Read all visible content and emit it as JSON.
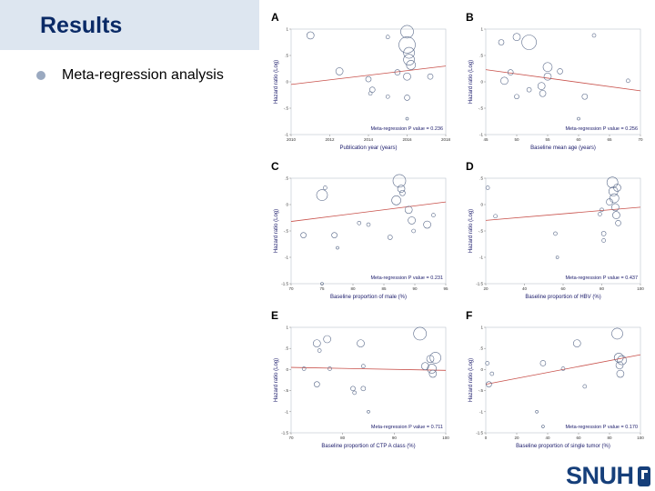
{
  "slide": {
    "title": "Results",
    "bullet": "Meta-regression analysis",
    "logo_text": "SNUH"
  },
  "colors": {
    "title": "#0a2a66",
    "title_band": "#dde6f0",
    "bubble": "#5a6a8a",
    "fit_line": "#c8504a",
    "logo": "#163f7a"
  },
  "panels": [
    {
      "letter": "A"
    },
    {
      "letter": "B"
    },
    {
      "letter": "C"
    },
    {
      "letter": "D"
    },
    {
      "letter": "E"
    },
    {
      "letter": "F"
    }
  ],
  "chart_data": [
    {
      "type": "scatter",
      "panel": "A",
      "xlabel": "Publication year (years)",
      "ylabel": "Hazard ratio (Log)",
      "xticks": [
        "2010",
        "2012",
        "2014",
        "2016",
        "2018"
      ],
      "yticks": [
        "1",
        ".5",
        "0",
        "-.5",
        "-1"
      ],
      "xlim": [
        2010,
        2018
      ],
      "ylim": [
        -1,
        1
      ],
      "annotation": "Meta-regression P value = 0.236",
      "fit": {
        "x": [
          2010,
          2018
        ],
        "y": [
          -0.05,
          0.3
        ]
      },
      "points": [
        {
          "x": 2011,
          "y": 0.88,
          "r": 4
        },
        {
          "x": 2012.5,
          "y": 0.2,
          "r": 4
        },
        {
          "x": 2014,
          "y": 0.05,
          "r": 3
        },
        {
          "x": 2014.2,
          "y": -0.15,
          "r": 3
        },
        {
          "x": 2014.1,
          "y": -0.22,
          "r": 2
        },
        {
          "x": 2015,
          "y": 0.85,
          "r": 2
        },
        {
          "x": 2015,
          "y": -0.28,
          "r": 2
        },
        {
          "x": 2015.5,
          "y": 0.18,
          "r": 3
        },
        {
          "x": 2016,
          "y": 0.95,
          "r": 7
        },
        {
          "x": 2016,
          "y": 0.7,
          "r": 9
        },
        {
          "x": 2016.1,
          "y": 0.55,
          "r": 6
        },
        {
          "x": 2016.1,
          "y": 0.42,
          "r": 6
        },
        {
          "x": 2016.2,
          "y": 0.32,
          "r": 5
        },
        {
          "x": 2016,
          "y": 0.1,
          "r": 4
        },
        {
          "x": 2016,
          "y": -0.3,
          "r": 3
        },
        {
          "x": 2016,
          "y": -0.7,
          "r": 1.5
        },
        {
          "x": 2017.2,
          "y": 0.1,
          "r": 3
        }
      ]
    },
    {
      "type": "scatter",
      "panel": "B",
      "xlabel": "Baseline mean age (years)",
      "ylabel": "Hazard ratio (Log)",
      "xticks": [
        "45",
        "50",
        "55",
        "60",
        "65",
        "70"
      ],
      "yticks": [
        "1",
        ".5",
        "0",
        "-.5",
        "-1"
      ],
      "xlim": [
        45,
        70
      ],
      "ylim": [
        -1,
        1
      ],
      "annotation": "Meta-regression P value = 0.256",
      "fit": {
        "x": [
          45,
          70
        ],
        "y": [
          0.23,
          -0.17
        ]
      },
      "points": [
        {
          "x": 47.5,
          "y": 0.75,
          "r": 3
        },
        {
          "x": 48,
          "y": 0.02,
          "r": 4
        },
        {
          "x": 49,
          "y": 0.18,
          "r": 3
        },
        {
          "x": 50,
          "y": 0.85,
          "r": 4
        },
        {
          "x": 50,
          "y": -0.28,
          "r": 2.5
        },
        {
          "x": 52,
          "y": 0.75,
          "r": 8
        },
        {
          "x": 52,
          "y": -0.15,
          "r": 2.5
        },
        {
          "x": 54,
          "y": -0.08,
          "r": 4
        },
        {
          "x": 54.2,
          "y": -0.22,
          "r": 3.5
        },
        {
          "x": 55,
          "y": 0.28,
          "r": 5
        },
        {
          "x": 55,
          "y": 0.1,
          "r": 4
        },
        {
          "x": 57,
          "y": 0.2,
          "r": 3
        },
        {
          "x": 61,
          "y": -0.28,
          "r": 3
        },
        {
          "x": 62.5,
          "y": 0.88,
          "r": 2
        },
        {
          "x": 60,
          "y": -0.7,
          "r": 1.5
        },
        {
          "x": 68,
          "y": 0.02,
          "r": 2
        }
      ]
    },
    {
      "type": "scatter",
      "panel": "C",
      "xlabel": "Baseline proportion of male (%)",
      "ylabel": "Hazard ratio (Log)",
      "xticks": [
        "70",
        "75",
        "80",
        "85",
        "90",
        "95"
      ],
      "yticks": [
        ".5",
        "0",
        "-.5",
        "-1",
        "-1.5"
      ],
      "xlim": [
        70,
        95
      ],
      "ylim": [
        -1.5,
        0.5
      ],
      "annotation": "Meta-regression P value = 0.231",
      "fit": {
        "x": [
          70,
          95
        ],
        "y": [
          -0.32,
          0.05
        ]
      },
      "points": [
        {
          "x": 72,
          "y": -0.58,
          "r": 3
        },
        {
          "x": 75,
          "y": 0.18,
          "r": 6
        },
        {
          "x": 75.5,
          "y": 0.32,
          "r": 2
        },
        {
          "x": 77,
          "y": -0.58,
          "r": 3
        },
        {
          "x": 77.5,
          "y": -0.82,
          "r": 1.5
        },
        {
          "x": 81,
          "y": -0.35,
          "r": 2
        },
        {
          "x": 82.5,
          "y": -0.38,
          "r": 2
        },
        {
          "x": 86,
          "y": -0.62,
          "r": 2.5
        },
        {
          "x": 87,
          "y": 0.08,
          "r": 5
        },
        {
          "x": 87.5,
          "y": 0.45,
          "r": 7
        },
        {
          "x": 87.8,
          "y": 0.3,
          "r": 4
        },
        {
          "x": 88,
          "y": 0.22,
          "r": 3
        },
        {
          "x": 89,
          "y": -0.1,
          "r": 4
        },
        {
          "x": 89.5,
          "y": -0.3,
          "r": 4
        },
        {
          "x": 89.8,
          "y": -0.5,
          "r": 2
        },
        {
          "x": 92,
          "y": -0.38,
          "r": 4
        },
        {
          "x": 93,
          "y": -0.2,
          "r": 2
        },
        {
          "x": 75,
          "y": -1.5,
          "r": 1.5
        }
      ]
    },
    {
      "type": "scatter",
      "panel": "D",
      "xlabel": "Baseline proportion of HBV (%)",
      "ylabel": "Hazard ratio (Log)",
      "xticks": [
        "20",
        "40",
        "60",
        "80",
        "100"
      ],
      "yticks": [
        ".5",
        "0",
        "-.5",
        "-1",
        "-1.5"
      ],
      "xlim": [
        20,
        100
      ],
      "ylim": [
        -1.5,
        0.5
      ],
      "annotation": "Meta-regression P value = 0.437",
      "fit": {
        "x": [
          20,
          100
        ],
        "y": [
          -0.3,
          -0.05
        ]
      },
      "points": [
        {
          "x": 21,
          "y": 0.32,
          "r": 2
        },
        {
          "x": 25,
          "y": -0.22,
          "r": 2
        },
        {
          "x": 56,
          "y": -0.55,
          "r": 2
        },
        {
          "x": 57,
          "y": -1.0,
          "r": 1.5
        },
        {
          "x": 79,
          "y": -0.18,
          "r": 2
        },
        {
          "x": 80,
          "y": -0.1,
          "r": 2
        },
        {
          "x": 81,
          "y": -0.55,
          "r": 2.5
        },
        {
          "x": 81,
          "y": -0.68,
          "r": 2
        },
        {
          "x": 84,
          "y": 0.05,
          "r": 3.5
        },
        {
          "x": 85.5,
          "y": 0.42,
          "r": 6
        },
        {
          "x": 86,
          "y": 0.25,
          "r": 5
        },
        {
          "x": 86.5,
          "y": 0.12,
          "r": 5
        },
        {
          "x": 87,
          "y": -0.05,
          "r": 4
        },
        {
          "x": 87.5,
          "y": -0.2,
          "r": 4
        },
        {
          "x": 88,
          "y": 0.32,
          "r": 4
        },
        {
          "x": 88.5,
          "y": -0.35,
          "r": 3
        }
      ]
    },
    {
      "type": "scatter",
      "panel": "E",
      "xlabel": "Baseline proportion of CTP A class (%)",
      "ylabel": "Hazard ratio (Log)",
      "xticks": [
        "70",
        "80",
        "90",
        "100"
      ],
      "yticks": [
        "1",
        ".5",
        "0",
        "-.5",
        "-1",
        "-1.5"
      ],
      "xlim": [
        70,
        100
      ],
      "ylim": [
        -1.5,
        1
      ],
      "annotation": "Meta-regression P value = 0.711",
      "fit": {
        "x": [
          70,
          100
        ],
        "y": [
          0.05,
          -0.02
        ]
      },
      "points": [
        {
          "x": 72.5,
          "y": 0.02,
          "r": 2
        },
        {
          "x": 75,
          "y": 0.62,
          "r": 4
        },
        {
          "x": 75.5,
          "y": 0.45,
          "r": 2
        },
        {
          "x": 75,
          "y": -0.35,
          "r": 3
        },
        {
          "x": 77,
          "y": 0.72,
          "r": 4
        },
        {
          "x": 77.5,
          "y": 0.02,
          "r": 2
        },
        {
          "x": 82,
          "y": -0.45,
          "r": 2.5
        },
        {
          "x": 82.3,
          "y": -0.55,
          "r": 2
        },
        {
          "x": 83.5,
          "y": 0.62,
          "r": 4
        },
        {
          "x": 84,
          "y": 0.08,
          "r": 2
        },
        {
          "x": 84,
          "y": -0.45,
          "r": 2.5
        },
        {
          "x": 85,
          "y": -1.0,
          "r": 1.5
        },
        {
          "x": 95,
          "y": 0.85,
          "r": 7
        },
        {
          "x": 96,
          "y": 0.08,
          "r": 4
        },
        {
          "x": 97,
          "y": 0.25,
          "r": 4
        },
        {
          "x": 97.3,
          "y": 0.02,
          "r": 5
        },
        {
          "x": 97.5,
          "y": -0.1,
          "r": 4
        },
        {
          "x": 98,
          "y": 0.28,
          "r": 6
        }
      ]
    },
    {
      "type": "scatter",
      "panel": "F",
      "xlabel": "Baseline proportion of single tumor (%)",
      "ylabel": "Hazard ratio (Log)",
      "xticks": [
        "0",
        "20",
        "40",
        "60",
        "80",
        "100"
      ],
      "yticks": [
        "1",
        ".5",
        "0",
        "-.5",
        "-1",
        "-1.5"
      ],
      "xlim": [
        0,
        100
      ],
      "ylim": [
        -1.5,
        1
      ],
      "annotation": "Meta-regression P value = 0.170",
      "fit": {
        "x": [
          0,
          100
        ],
        "y": [
          -0.35,
          0.35
        ]
      },
      "points": [
        {
          "x": 1,
          "y": 0.15,
          "r": 2
        },
        {
          "x": 2,
          "y": -0.35,
          "r": 3
        },
        {
          "x": 4,
          "y": -0.1,
          "r": 2
        },
        {
          "x": 33,
          "y": -1.0,
          "r": 1.5
        },
        {
          "x": 37,
          "y": -1.35,
          "r": 1.5
        },
        {
          "x": 37,
          "y": 0.15,
          "r": 3
        },
        {
          "x": 50,
          "y": 0.02,
          "r": 2
        },
        {
          "x": 59,
          "y": 0.62,
          "r": 4
        },
        {
          "x": 64,
          "y": -0.4,
          "r": 2
        },
        {
          "x": 85,
          "y": 0.85,
          "r": 6
        },
        {
          "x": 86,
          "y": 0.28,
          "r": 5
        },
        {
          "x": 86.5,
          "y": 0.1,
          "r": 4
        },
        {
          "x": 87,
          "y": -0.1,
          "r": 4
        },
        {
          "x": 88,
          "y": 0.22,
          "r": 5
        }
      ]
    }
  ]
}
